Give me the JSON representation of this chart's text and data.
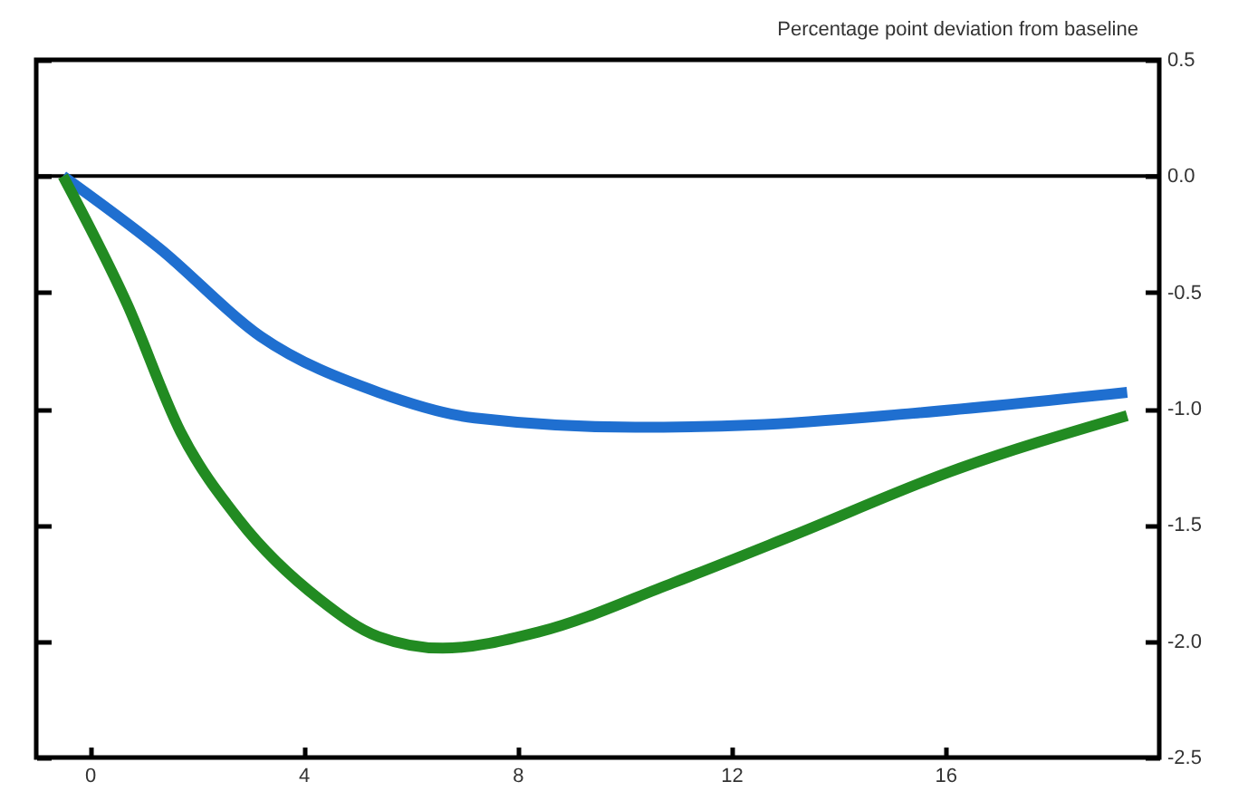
{
  "chart_data": {
    "type": "line",
    "ylabel": "Percentage point deviation from baseline",
    "x": [
      -0.5,
      0.7,
      1.3,
      1.7,
      2.8,
      3.2,
      4.3,
      5.4,
      6.6,
      7.2,
      8.4,
      10.2,
      10.9,
      12.4,
      13.1,
      15.4,
      16.1,
      19.4
    ],
    "series": [
      {
        "color": "#1f6fd0",
        "values": [
          0,
          null,
          -0.31,
          null,
          null,
          -0.69,
          null,
          -0.93,
          null,
          -1.04,
          null,
          -1.08,
          null,
          -1.07,
          null,
          -1.02,
          null,
          -0.93
        ]
      },
      {
        "color": "#228b22",
        "values": [
          0,
          -0.55,
          null,
          -1.1,
          -1.48,
          null,
          -1.82,
          -1.98,
          -2.03,
          null,
          -1.96,
          null,
          -1.75,
          null,
          -1.55,
          null,
          -1.27,
          -1.03
        ]
      }
    ],
    "xlim": [
      -1,
      20
    ],
    "xticks": [
      0,
      4,
      8,
      12,
      16
    ],
    "ylim": [
      -2.5,
      0.5
    ],
    "yticks": [
      {
        "value": 0.5,
        "label": "0.5"
      },
      {
        "value": 0,
        "label": "0.0"
      },
      {
        "value": -0.5,
        "label": "-0.5"
      },
      {
        "value": -1,
        "label": "-1.0"
      },
      {
        "value": -1.5,
        "label": "-1.5"
      },
      {
        "value": -2,
        "label": "-2.0"
      },
      {
        "value": -2.5,
        "label": "-2.5"
      }
    ],
    "ref_lines": [
      {
        "axis": "y",
        "value": 0,
        "color": "#000000"
      }
    ],
    "grid": false,
    "legend": false,
    "line_style": "solid",
    "marker": "none"
  }
}
